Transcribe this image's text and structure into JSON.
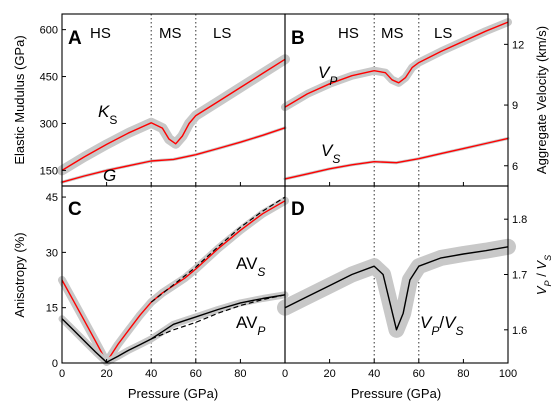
{
  "chart_data": [
    {
      "panel": "A",
      "type": "line",
      "ylabel": "Elastic Mudulus (GPa)",
      "xlim": [
        0,
        100
      ],
      "ylim": [
        100,
        650
      ],
      "yticks": [
        150,
        300,
        450,
        600
      ],
      "xticks": [
        0,
        20,
        40,
        60,
        80,
        100
      ],
      "regions": [
        "HS",
        "MS",
        "LS"
      ],
      "transitions": [
        40,
        60
      ],
      "colors": {
        "mean": "#ff0000",
        "band": "#c8c8c8"
      },
      "series": [
        {
          "label_base": "K",
          "label_sub": "S",
          "x": [
            0,
            10,
            20,
            30,
            40,
            45,
            48,
            51,
            54,
            57,
            60,
            70,
            80,
            90,
            100
          ],
          "y": [
            150,
            193,
            233,
            270,
            302,
            285,
            250,
            235,
            260,
            300,
            325,
            370,
            415,
            460,
            505
          ]
        },
        {
          "label_base": "G",
          "label_sub": "",
          "x": [
            0,
            10,
            20,
            30,
            40,
            50,
            60,
            70,
            80,
            90,
            100
          ],
          "y": [
            112,
            132,
            150,
            165,
            180,
            185,
            200,
            220,
            240,
            262,
            286
          ]
        }
      ]
    },
    {
      "panel": "B",
      "type": "line",
      "ylabel": "Aggregate Velocity (km/s)",
      "xlim": [
        0,
        100
      ],
      "ylim": [
        5.0,
        13.5
      ],
      "yticks": [
        6,
        9,
        12
      ],
      "xticks": [
        0,
        20,
        40,
        60,
        80,
        100
      ],
      "regions": [
        "HS",
        "MS",
        "LS"
      ],
      "transitions": [
        40,
        60
      ],
      "colors": {
        "mean": "#ff0000",
        "band": "#c8c8c8"
      },
      "series": [
        {
          "label_base": "V",
          "label_sub": "P",
          "x": [
            0,
            10,
            20,
            30,
            40,
            45,
            48,
            51,
            54,
            57,
            60,
            70,
            80,
            90,
            100
          ],
          "y": [
            8.9,
            9.55,
            10.05,
            10.45,
            10.7,
            10.6,
            10.25,
            10.1,
            10.35,
            10.85,
            11.1,
            11.65,
            12.15,
            12.65,
            13.1
          ]
        },
        {
          "label_base": "V",
          "label_sub": "S",
          "x": [
            0,
            10,
            20,
            30,
            40,
            50,
            60,
            70,
            80,
            90,
            100
          ],
          "y": [
            5.35,
            5.6,
            5.85,
            6.05,
            6.2,
            6.15,
            6.35,
            6.6,
            6.85,
            7.1,
            7.35
          ]
        }
      ]
    },
    {
      "panel": "C",
      "type": "line",
      "ylabel": "Anisotropy (%)",
      "xlabel": "Pressure (GPa)",
      "xlim": [
        0,
        100
      ],
      "ylim": [
        0,
        48
      ],
      "yticks": [
        0,
        15,
        30,
        45
      ],
      "xticks": [
        0,
        20,
        40,
        60,
        80,
        100
      ],
      "transitions": [
        40,
        60
      ],
      "colors": {
        "AVS": "#ff0000",
        "AVP": "#000000",
        "dashed": "#000000",
        "band": "#c8c8c8"
      },
      "series": [
        {
          "label_base": "AV",
          "label_sub": "S",
          "style": "solid",
          "color": "#ff0000",
          "x": [
            0,
            5,
            10,
            15,
            20,
            25,
            30,
            35,
            40,
            45,
            50,
            55,
            60,
            70,
            80,
            90,
            100
          ],
          "y": [
            22.5,
            17,
            11.5,
            6,
            0.3,
            5,
            9,
            13,
            16.5,
            19,
            21,
            23,
            25.5,
            31,
            36,
            40.5,
            44
          ]
        },
        {
          "label_base": "",
          "label_sub": "",
          "style": "dashed",
          "color": "#000000",
          "x": [
            40,
            50,
            60,
            70,
            80,
            90,
            100
          ],
          "y": [
            16.5,
            21.2,
            26,
            31.5,
            36.8,
            41.2,
            45
          ]
        },
        {
          "label_base": "AV",
          "label_sub": "P",
          "style": "solid",
          "color": "#000000",
          "x": [
            0,
            5,
            10,
            15,
            20,
            25,
            30,
            35,
            40,
            45,
            50,
            55,
            60,
            70,
            80,
            90,
            100
          ],
          "y": [
            12,
            9,
            6,
            3,
            0.2,
            1.8,
            3.5,
            5,
            6.5,
            8.5,
            10.5,
            11.5,
            12.5,
            14.5,
            16.3,
            17.5,
            18.5
          ]
        },
        {
          "label_base": "",
          "label_sub": "",
          "style": "dashed",
          "color": "#000000",
          "x": [
            40,
            50,
            60,
            70,
            80,
            90,
            100
          ],
          "y": [
            6.5,
            9,
            11,
            13.5,
            15.6,
            17.2,
            18.5
          ]
        }
      ]
    },
    {
      "panel": "D",
      "type": "line",
      "ylabel": "V_P / V_S",
      "xlabel": "Pressure (GPa)",
      "xlim": [
        0,
        100
      ],
      "ylim": [
        1.54,
        1.86
      ],
      "yticks": [
        1.6,
        1.7,
        1.8
      ],
      "xticks": [
        0,
        20,
        40,
        60,
        80,
        100
      ],
      "transitions": [
        40,
        60
      ],
      "colors": {
        "mean": "#000000",
        "band": "#c8c8c8"
      },
      "series": [
        {
          "label": "VP/VS",
          "x": [
            0,
            10,
            20,
            30,
            40,
            44,
            47,
            50,
            53,
            56,
            60,
            70,
            80,
            90,
            100
          ],
          "y": [
            1.64,
            1.66,
            1.68,
            1.7,
            1.715,
            1.7,
            1.65,
            1.6,
            1.63,
            1.69,
            1.715,
            1.73,
            1.737,
            1.743,
            1.75
          ]
        }
      ]
    }
  ],
  "labels": {
    "panelA": "A",
    "panelB": "B",
    "panelC": "C",
    "panelD": "D",
    "hs": "HS",
    "ms": "MS",
    "ls": "LS",
    "ylabelA": "Elastic Mudulus (GPa)",
    "ylabelB": "Aggregate Velocity (km/s)",
    "ylabelC": "Anisotropy (%)",
    "xlabelC": "Pressure (GPa)",
    "xlabelD": "Pressure (GPa)",
    "ks_base": "K",
    "ks_sub": "S",
    "g": "G",
    "vp_base": "V",
    "vp_sub": "P",
    "vs_base": "V",
    "vs_sub": "S",
    "avs_base": "AV",
    "avs_sub": "S",
    "avp_base": "AV",
    "avp_sub": "P",
    "ratio_p_base": "V",
    "ratio_p_sub": "P",
    "ratio_sep": "/",
    "ratio_s_base": "V",
    "ratio_s_sub": "S",
    "ylabelD_p_base": "V",
    "ylabelD_p_sub": "P",
    "ylabelD_sep": " / ",
    "ylabelD_s_base": "V",
    "ylabelD_s_sub": "S"
  }
}
